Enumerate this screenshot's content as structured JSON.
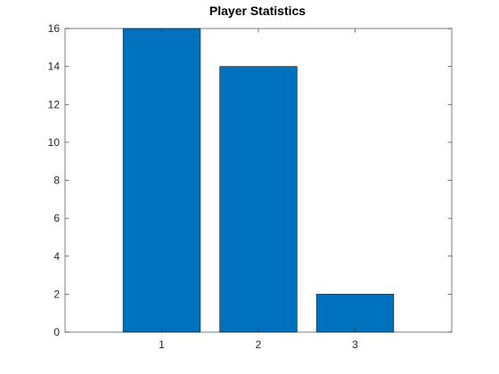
{
  "chart_data": {
    "type": "bar",
    "title": "Player Statistics",
    "xlabel": "",
    "ylabel": "",
    "categories": [
      "1",
      "2",
      "3"
    ],
    "values": [
      16,
      14,
      2
    ],
    "ylim": [
      0,
      16
    ],
    "xlim": [
      0,
      4
    ],
    "yticks": [
      0,
      2,
      4,
      6,
      8,
      10,
      12,
      14,
      16
    ],
    "grid": false,
    "legend": "none",
    "bar_color": "#0072bd",
    "axis_color": "#262626"
  }
}
